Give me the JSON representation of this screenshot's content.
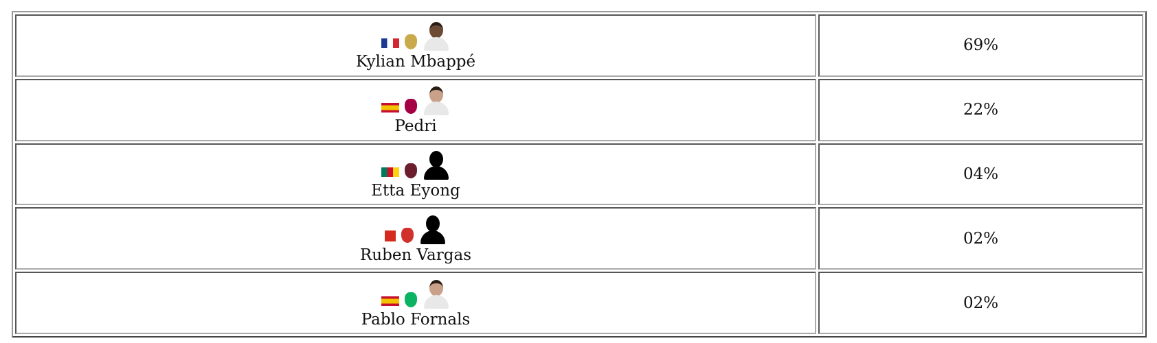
{
  "rows": [
    {
      "name": "Kylian Mbappé",
      "percent": "69%",
      "flag": "france-flag",
      "flag_colors": [
        "#1a3a8f",
        "#ffffff",
        "#d22630"
      ],
      "crest": "real-madrid-crest",
      "crest_color": "#c9a94a",
      "photo": "player-photo",
      "photo_kind": "photo",
      "skin": "#6b4a36"
    },
    {
      "name": "Pedri",
      "percent": "22%",
      "flag": "spain-flag",
      "flag_colors": [
        "#c8102e",
        "#f4c300",
        "#c8102e"
      ],
      "crest": "fc-barcelona-crest",
      "crest_color": "#a50044",
      "photo": "player-photo",
      "photo_kind": "photo",
      "skin": "#c9a088"
    },
    {
      "name": "Etta Eyong",
      "percent": "04%",
      "flag": "cameroon-flag",
      "flag_colors": [
        "#007a5e",
        "#ce1126",
        "#fcd116"
      ],
      "crest": "levante-crest",
      "crest_color": "#6b1f2e",
      "photo": "silhouette-icon",
      "photo_kind": "silhouette",
      "skin": "#000000"
    },
    {
      "name": "Ruben Vargas",
      "percent": "02%",
      "flag": "switzerland-flag",
      "flag_colors": [
        "#d52b1e",
        "#ffffff",
        "#d52b1e"
      ],
      "crest": "sevilla-crest",
      "crest_color": "#d0312d",
      "photo": "silhouette-icon",
      "photo_kind": "silhouette",
      "skin": "#000000"
    },
    {
      "name": "Pablo Fornals",
      "percent": "02%",
      "flag": "spain-flag",
      "flag_colors": [
        "#c8102e",
        "#f4c300",
        "#c8102e"
      ],
      "crest": "real-betis-crest",
      "crest_color": "#0bb363",
      "photo": "player-photo",
      "photo_kind": "photo",
      "skin": "#c9a088"
    }
  ]
}
